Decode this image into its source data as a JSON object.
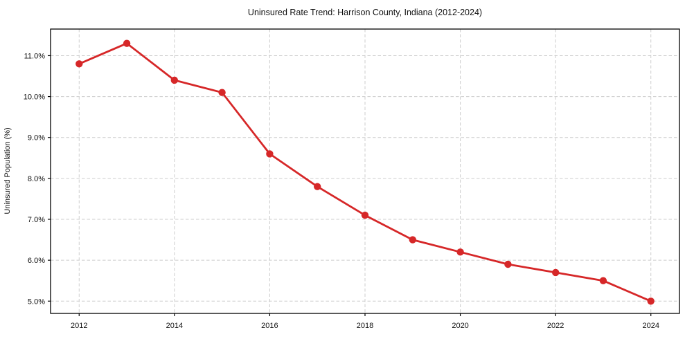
{
  "chart_data": {
    "type": "line",
    "title": "Uninsured Rate Trend: Harrison County, Indiana (2012-2024)",
    "xlabel": "",
    "ylabel": "Uninsured Population (%)",
    "x": [
      2012,
      2013,
      2014,
      2015,
      2016,
      2017,
      2018,
      2019,
      2020,
      2021,
      2022,
      2023,
      2024
    ],
    "values": [
      10.8,
      11.3,
      10.4,
      10.1,
      8.6,
      7.8,
      7.1,
      6.5,
      6.2,
      5.9,
      5.7,
      5.5,
      5.0
    ],
    "line_color": "#d62728",
    "marker": "circle",
    "x_ticks": {
      "values": [
        2012,
        2014,
        2016,
        2018,
        2020,
        2022,
        2024
      ],
      "labels": [
        "2012",
        "2014",
        "2016",
        "2018",
        "2020",
        "2022",
        "2024"
      ]
    },
    "y_ticks": {
      "values": [
        5.0,
        6.0,
        7.0,
        8.0,
        9.0,
        10.0,
        11.0
      ],
      "labels": [
        "5.0%",
        "6.0%",
        "7.0%",
        "8.0%",
        "9.0%",
        "10.0%",
        "11.0%"
      ]
    },
    "xlim": [
      2011.4,
      2024.6
    ],
    "ylim": [
      4.7,
      11.65
    ],
    "grid": true,
    "grid_color": "#cccccc",
    "background": "#ffffff",
    "legend": "none"
  }
}
